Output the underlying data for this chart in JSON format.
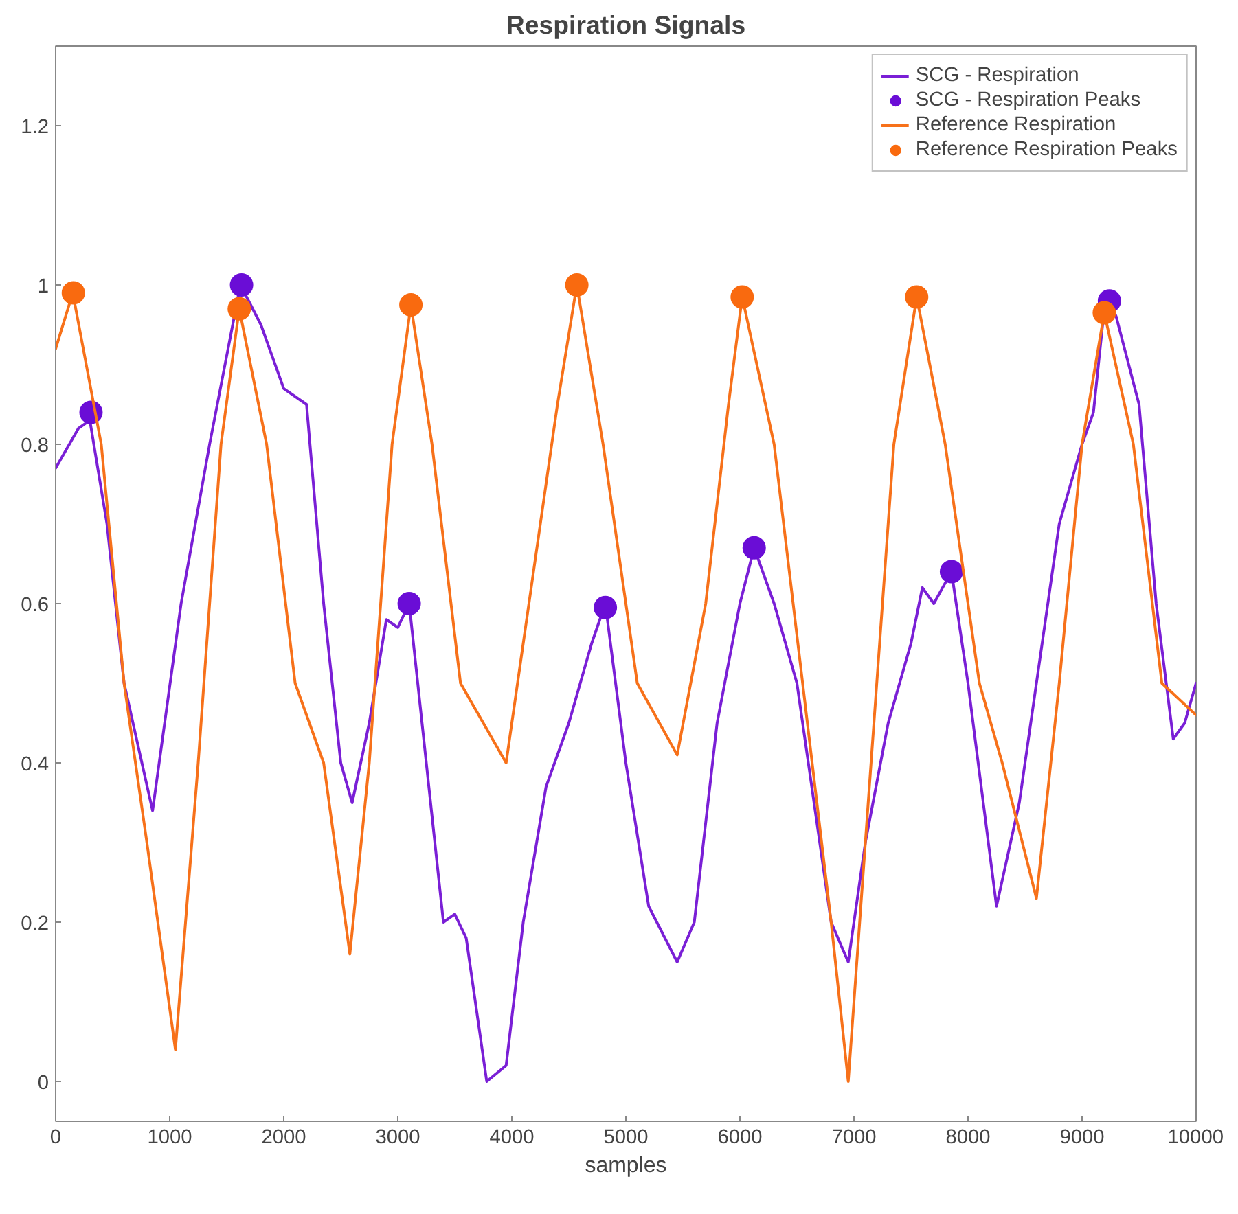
{
  "chart_data": {
    "type": "line",
    "title": "Respiration Signals",
    "xlabel": "samples",
    "xlim": [
      0,
      10000
    ],
    "ylim": [
      -0.05,
      1.3
    ],
    "xticks": [
      0,
      1000,
      2000,
      3000,
      4000,
      5000,
      6000,
      7000,
      8000,
      9000,
      10000
    ],
    "yticks": [
      0,
      0.2,
      0.4,
      0.6,
      0.8,
      1,
      1.2
    ],
    "grid": false,
    "legend": "top right",
    "series": [
      {
        "name": "SCG - Respiration",
        "color": "#7a1fd6",
        "x": [
          0,
          200,
          300,
          450,
          600,
          850,
          1100,
          1350,
          1620,
          1800,
          2000,
          2200,
          2350,
          2500,
          2600,
          2750,
          2900,
          3000,
          3100,
          3250,
          3400,
          3500,
          3600,
          3780,
          3950,
          4100,
          4300,
          4500,
          4700,
          4820,
          5000,
          5200,
          5450,
          5600,
          5800,
          6000,
          6125,
          6300,
          6500,
          6700,
          6800,
          6950,
          7100,
          7300,
          7500,
          7600,
          7700,
          7855,
          8000,
          8250,
          8450,
          8650,
          8800,
          9000,
          9100,
          9180,
          9240,
          9300,
          9500,
          9650,
          9800,
          9900,
          10000
        ],
        "values": [
          0.77,
          0.82,
          0.83,
          0.7,
          0.5,
          0.34,
          0.6,
          0.8,
          1.0,
          0.95,
          0.87,
          0.85,
          0.6,
          0.4,
          0.35,
          0.45,
          0.58,
          0.57,
          0.6,
          0.4,
          0.2,
          0.21,
          0.18,
          0.0,
          0.02,
          0.2,
          0.37,
          0.45,
          0.55,
          0.6,
          0.4,
          0.22,
          0.15,
          0.2,
          0.45,
          0.6,
          0.67,
          0.6,
          0.5,
          0.3,
          0.2,
          0.15,
          0.3,
          0.45,
          0.55,
          0.62,
          0.6,
          0.64,
          0.5,
          0.22,
          0.35,
          0.55,
          0.7,
          0.8,
          0.84,
          0.95,
          0.98,
          0.96,
          0.85,
          0.6,
          0.43,
          0.45,
          0.5
        ]
      },
      {
        "name": "SCG - Respiration Peaks",
        "type": "scatter",
        "marker": "circle",
        "color": "#6a0dd6",
        "x": [
          310,
          1630,
          3100,
          4820,
          6125,
          7855,
          9240
        ],
        "values": [
          0.84,
          1.0,
          0.6,
          0.595,
          0.67,
          0.64,
          0.98
        ]
      },
      {
        "name": "Reference Respiration",
        "color": "#f7711a",
        "x": [
          0,
          150,
          400,
          600,
          800,
          1050,
          1250,
          1450,
          1610,
          1850,
          2100,
          2350,
          2580,
          2750,
          2950,
          3115,
          3300,
          3550,
          3950,
          4150,
          4400,
          4570,
          4800,
          5100,
          5450,
          5700,
          5900,
          6020,
          6300,
          6550,
          6800,
          6950,
          7150,
          7350,
          7550,
          7800,
          8100,
          8300,
          8600,
          8800,
          9000,
          9195,
          9450,
          9700,
          10000
        ],
        "values": [
          0.92,
          0.99,
          0.8,
          0.5,
          0.3,
          0.04,
          0.4,
          0.8,
          0.97,
          0.8,
          0.5,
          0.4,
          0.16,
          0.4,
          0.8,
          0.975,
          0.8,
          0.5,
          0.4,
          0.6,
          0.85,
          1.0,
          0.8,
          0.5,
          0.41,
          0.6,
          0.85,
          0.985,
          0.8,
          0.5,
          0.2,
          0.0,
          0.4,
          0.8,
          0.985,
          0.8,
          0.5,
          0.4,
          0.23,
          0.5,
          0.8,
          0.965,
          0.8,
          0.5,
          0.46
        ]
      },
      {
        "name": "Reference Respiration Peaks",
        "type": "scatter",
        "marker": "circle",
        "color": "#f96a0f",
        "x": [
          155,
          1610,
          3115,
          4570,
          6020,
          7550,
          9195
        ],
        "values": [
          0.99,
          0.97,
          0.975,
          1.0,
          0.985,
          0.985,
          0.965
        ]
      }
    ]
  }
}
